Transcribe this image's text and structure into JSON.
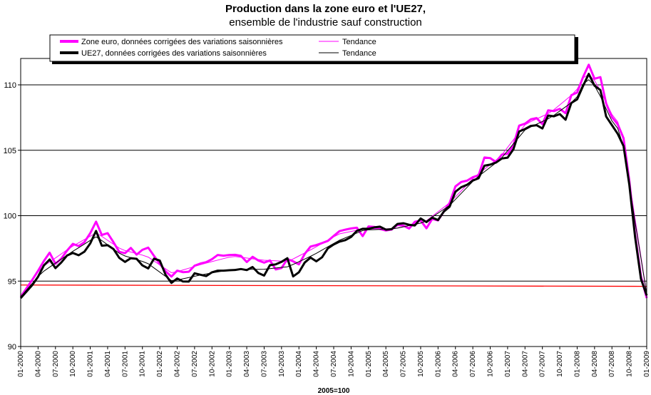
{
  "chart_data": {
    "type": "line",
    "title": "Production dans la zone euro et l'UE27,",
    "subtitle": "ensemble de l'industrie sauf construction",
    "xlabel": "2005=100",
    "ylabel": "",
    "ylim": [
      90,
      112
    ],
    "yticks": [
      90,
      95,
      100,
      105,
      110
    ],
    "grid": true,
    "legend_position": "top",
    "x_tick_labels": [
      "01-2000",
      "04-2000",
      "07-2000",
      "10-2000",
      "01-2001",
      "04-2001",
      "07-2001",
      "10-2001",
      "01-2002",
      "04-2002",
      "07-2002",
      "10-2002",
      "01-2003",
      "04-2003",
      "07-2003",
      "10-2003",
      "01-2004",
      "04-2004",
      "07-2004",
      "10-2004",
      "01-2005",
      "04-2005",
      "07-2005",
      "10-2005",
      "01-2006",
      "04-2006",
      "07-2006",
      "10-2006",
      "01-2007",
      "04-2007",
      "07-2007",
      "10-2007",
      "01-2008",
      "04-2008",
      "07-2008",
      "10-2008",
      "01-2009"
    ],
    "x_start": "01-2000",
    "x_end": "01-2009",
    "reference_line": {
      "value": 94.7,
      "value_end": 94.6,
      "color": "#ff0000"
    },
    "series": [
      {
        "name": "Zone euro, données corrigées des variations saisonnières",
        "kind": "data",
        "color": "#ff00ff",
        "anchors": [
          [
            0,
            93.8
          ],
          [
            3,
            95.5
          ],
          [
            5,
            96.8
          ],
          [
            6,
            97.3
          ],
          [
            7,
            96.2
          ],
          [
            9,
            97.2
          ],
          [
            10,
            97.9
          ],
          [
            12,
            97.6
          ],
          [
            14,
            98.8
          ],
          [
            15,
            99.6
          ],
          [
            16,
            98.5
          ],
          [
            17,
            98.8
          ],
          [
            19,
            97.6
          ],
          [
            20,
            96.9
          ],
          [
            22,
            97.6
          ],
          [
            23,
            97.0
          ],
          [
            25,
            97.7
          ],
          [
            27,
            96.6
          ],
          [
            29,
            95.6
          ],
          [
            30,
            95.3
          ],
          [
            31,
            95.8
          ],
          [
            33,
            95.6
          ],
          [
            35,
            96.4
          ],
          [
            36,
            96.3
          ],
          [
            38,
            96.7
          ],
          [
            39,
            97.0
          ],
          [
            41,
            96.9
          ],
          [
            42,
            97.2
          ],
          [
            43,
            96.8
          ],
          [
            44,
            97.0
          ],
          [
            45,
            96.3
          ],
          [
            46,
            96.9
          ],
          [
            48,
            96.3
          ],
          [
            49,
            96.8
          ],
          [
            51,
            95.6
          ],
          [
            53,
            96.8
          ],
          [
            55,
            96.2
          ],
          [
            57,
            97.6
          ],
          [
            59,
            97.8
          ],
          [
            61,
            98.1
          ],
          [
            63,
            98.8
          ],
          [
            65,
            99.0
          ],
          [
            67,
            99.1
          ],
          [
            68,
            98.2
          ],
          [
            69,
            99.3
          ],
          [
            71,
            99.0
          ],
          [
            73,
            98.8
          ],
          [
            75,
            99.4
          ],
          [
            77,
            99.0
          ],
          [
            78,
            99.5
          ],
          [
            79,
            99.9
          ],
          [
            80,
            98.7
          ],
          [
            81,
            99.6
          ],
          [
            82,
            99.9
          ],
          [
            83,
            99.5
          ],
          [
            84,
            100.5
          ],
          [
            85,
            101.0
          ],
          [
            86,
            102.2
          ],
          [
            88,
            102.8
          ],
          [
            89,
            102.5
          ],
          [
            90,
            103.3
          ],
          [
            91,
            103.0
          ],
          [
            92,
            104.7
          ],
          [
            93,
            104.4
          ],
          [
            94,
            104.0
          ],
          [
            95,
            104.7
          ],
          [
            96,
            104.6
          ],
          [
            97,
            104.9
          ],
          [
            98,
            105.7
          ],
          [
            99,
            107.3
          ],
          [
            100,
            107.0
          ],
          [
            102,
            107.7
          ],
          [
            103,
            106.4
          ],
          [
            104,
            108.2
          ],
          [
            105,
            107.9
          ],
          [
            107,
            108.2
          ],
          [
            108,
            107.8
          ],
          [
            109,
            109.2
          ],
          [
            110,
            109.3
          ],
          [
            111,
            109.8
          ],
          [
            112,
            111.9
          ],
          [
            113,
            111.2
          ],
          [
            114,
            110.1
          ],
          [
            115,
            110.7
          ],
          [
            116,
            108.5
          ],
          [
            117,
            107.6
          ],
          [
            118,
            107.0
          ],
          [
            119,
            106.9
          ],
          [
            120,
            104.5
          ],
          [
            121,
            101.2
          ],
          [
            122,
            97.5
          ],
          [
            123,
            95.0
          ],
          [
            124,
            93.7
          ]
        ]
      },
      {
        "name": "Tendance",
        "kind": "trend",
        "color": "#ff00ff",
        "anchors": [
          [
            0,
            93.8
          ],
          [
            4,
            96.0
          ],
          [
            10,
            97.6
          ],
          [
            15,
            98.7
          ],
          [
            20,
            97.4
          ],
          [
            25,
            96.9
          ],
          [
            30,
            95.6
          ],
          [
            36,
            96.3
          ],
          [
            42,
            96.9
          ],
          [
            48,
            96.6
          ],
          [
            53,
            96.5
          ],
          [
            58,
            97.5
          ],
          [
            63,
            98.6
          ],
          [
            68,
            99.0
          ],
          [
            74,
            99.0
          ],
          [
            80,
            99.5
          ],
          [
            85,
            101.0
          ],
          [
            90,
            103.0
          ],
          [
            95,
            104.5
          ],
          [
            100,
            107.0
          ],
          [
            105,
            107.9
          ],
          [
            110,
            109.5
          ],
          [
            112,
            111.0
          ],
          [
            114,
            110.2
          ],
          [
            117,
            107.8
          ],
          [
            119,
            106.8
          ],
          [
            121,
            101.5
          ],
          [
            124,
            94.0
          ]
        ]
      },
      {
        "name": "UE27, données corrigées des variations saisonnières",
        "kind": "data",
        "color": "#000000",
        "anchors": [
          [
            0,
            93.7
          ],
          [
            3,
            95.0
          ],
          [
            5,
            96.5
          ],
          [
            6,
            96.7
          ],
          [
            7,
            95.9
          ],
          [
            9,
            96.9
          ],
          [
            10,
            97.2
          ],
          [
            12,
            96.9
          ],
          [
            14,
            98.0
          ],
          [
            15,
            98.9
          ],
          [
            16,
            97.7
          ],
          [
            17,
            97.8
          ],
          [
            19,
            97.3
          ],
          [
            20,
            96.3
          ],
          [
            22,
            96.8
          ],
          [
            23,
            96.7
          ],
          [
            25,
            95.8
          ],
          [
            27,
            97.1
          ],
          [
            29,
            95.2
          ],
          [
            30,
            94.8
          ],
          [
            31,
            95.2
          ],
          [
            33,
            94.8
          ],
          [
            35,
            95.9
          ],
          [
            36,
            95.2
          ],
          [
            38,
            95.7
          ],
          [
            39,
            95.8
          ],
          [
            41,
            95.8
          ],
          [
            42,
            95.9
          ],
          [
            43,
            95.8
          ],
          [
            44,
            96.0
          ],
          [
            45,
            95.8
          ],
          [
            46,
            96.1
          ],
          [
            48,
            95.2
          ],
          [
            49,
            96.2
          ],
          [
            51,
            96.3
          ],
          [
            53,
            96.8
          ],
          [
            54,
            95.3
          ],
          [
            55,
            95.6
          ],
          [
            57,
            96.9
          ],
          [
            59,
            96.4
          ],
          [
            61,
            97.6
          ],
          [
            63,
            98.0
          ],
          [
            65,
            98.2
          ],
          [
            67,
            99.0
          ],
          [
            69,
            99.0
          ],
          [
            71,
            99.2
          ],
          [
            73,
            98.8
          ],
          [
            75,
            99.5
          ],
          [
            77,
            99.3
          ],
          [
            78,
            99.2
          ],
          [
            79,
            99.9
          ],
          [
            80,
            99.4
          ],
          [
            81,
            99.7
          ],
          [
            82,
            100.0
          ],
          [
            83,
            99.5
          ],
          [
            84,
            100.5
          ],
          [
            85,
            100.7
          ],
          [
            86,
            101.8
          ],
          [
            88,
            102.4
          ],
          [
            89,
            102.3
          ],
          [
            90,
            103.0
          ],
          [
            91,
            102.8
          ],
          [
            92,
            104.0
          ],
          [
            93,
            103.9
          ],
          [
            94,
            104.0
          ],
          [
            95,
            104.4
          ],
          [
            96,
            104.3
          ],
          [
            97,
            104.6
          ],
          [
            98,
            105.4
          ],
          [
            99,
            106.8
          ],
          [
            100,
            106.6
          ],
          [
            102,
            107.1
          ],
          [
            103,
            106.1
          ],
          [
            104,
            107.8
          ],
          [
            105,
            107.5
          ],
          [
            107,
            107.8
          ],
          [
            108,
            107.3
          ],
          [
            109,
            108.6
          ],
          [
            110,
            108.8
          ],
          [
            111,
            109.2
          ],
          [
            112,
            111.1
          ],
          [
            113,
            110.6
          ],
          [
            114,
            109.6
          ],
          [
            115,
            109.6
          ],
          [
            116,
            107.5
          ],
          [
            117,
            107.0
          ],
          [
            118,
            106.3
          ],
          [
            119,
            106.1
          ],
          [
            120,
            104.2
          ],
          [
            121,
            100.9
          ],
          [
            122,
            97.3
          ],
          [
            123,
            94.8
          ],
          [
            124,
            93.9
          ]
        ]
      },
      {
        "name": "Tendance",
        "kind": "trend",
        "color": "#000000",
        "anchors": [
          [
            0,
            93.8
          ],
          [
            4,
            95.6
          ],
          [
            10,
            97.2
          ],
          [
            15,
            98.4
          ],
          [
            20,
            97.0
          ],
          [
            25,
            96.4
          ],
          [
            30,
            95.0
          ],
          [
            36,
            95.5
          ],
          [
            42,
            95.9
          ],
          [
            48,
            95.9
          ],
          [
            53,
            96.1
          ],
          [
            58,
            97.0
          ],
          [
            63,
            98.1
          ],
          [
            68,
            98.9
          ],
          [
            74,
            99.0
          ],
          [
            80,
            99.5
          ],
          [
            85,
            100.8
          ],
          [
            90,
            102.8
          ],
          [
            95,
            104.3
          ],
          [
            100,
            106.6
          ],
          [
            105,
            107.5
          ],
          [
            110,
            108.9
          ],
          [
            112,
            110.6
          ],
          [
            114,
            109.8
          ],
          [
            117,
            107.3
          ],
          [
            119,
            106.3
          ],
          [
            121,
            101.2
          ],
          [
            124,
            94.0
          ]
        ]
      }
    ]
  }
}
